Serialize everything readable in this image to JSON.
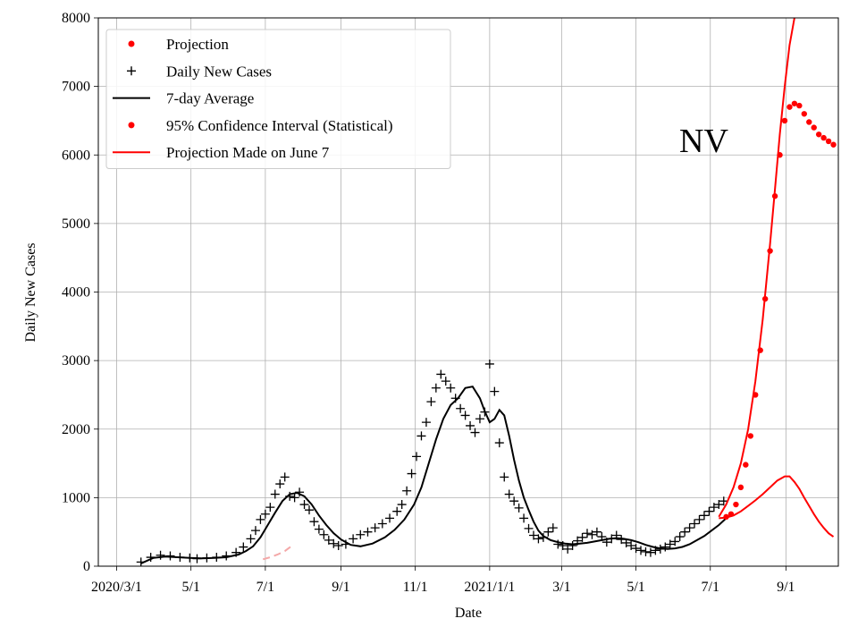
{
  "chart_data": {
    "type": "line",
    "title": "",
    "annotation": "NV",
    "xlabel": "Date",
    "ylabel": "Daily New Cases",
    "ylim": [
      0,
      8000
    ],
    "x_unit": "days since 2020-03-01",
    "xlim": [
      -15,
      592
    ],
    "grid": true,
    "legend_position": "upper-left",
    "x_ticks": [
      {
        "day": 0,
        "label": "2020/3/1"
      },
      {
        "day": 61,
        "label": "5/1"
      },
      {
        "day": 122,
        "label": "7/1"
      },
      {
        "day": 184,
        "label": "9/1"
      },
      {
        "day": 245,
        "label": "11/1"
      },
      {
        "day": 306,
        "label": "2021/1/1"
      },
      {
        "day": 365,
        "label": "3/1"
      },
      {
        "day": 426,
        "label": "5/1"
      },
      {
        "day": 487,
        "label": "7/1"
      },
      {
        "day": 549,
        "label": "9/1"
      }
    ],
    "y_ticks": [
      0,
      1000,
      2000,
      3000,
      4000,
      5000,
      6000,
      7000,
      8000
    ],
    "legend": [
      {
        "key": "projection",
        "label": "Projection",
        "marker": "dot",
        "color": "#ff0000"
      },
      {
        "key": "daily",
        "label": "Daily New Cases",
        "marker": "plus",
        "color": "#000000"
      },
      {
        "key": "avg",
        "label": "7-day Average",
        "marker": "line",
        "color": "#000000"
      },
      {
        "key": "ci",
        "label": "95% Confidence Interval (Statistical)",
        "marker": "dot",
        "color": "#ff0000"
      },
      {
        "key": "june7",
        "label": "Projection Made on June 7",
        "marker": "line",
        "color": "#ff0000"
      }
    ],
    "series": [
      {
        "name": "Daily New Cases",
        "kind": "scatter-plus",
        "color": "#000000",
        "x": [
          20,
          28,
          36,
          44,
          52,
          60,
          66,
          74,
          82,
          90,
          98,
          104,
          110,
          114,
          118,
          122,
          126,
          130,
          134,
          138,
          142,
          146,
          150,
          154,
          158,
          162,
          166,
          170,
          174,
          178,
          182,
          188,
          194,
          200,
          206,
          212,
          218,
          224,
          230,
          234,
          238,
          242,
          246,
          250,
          254,
          258,
          262,
          266,
          270,
          274,
          278,
          282,
          286,
          290,
          294,
          298,
          302,
          306,
          310,
          314,
          318,
          322,
          326,
          330,
          334,
          338,
          342,
          346,
          350,
          354,
          358,
          362,
          366,
          370,
          374,
          378,
          382,
          386,
          390,
          394,
          398,
          402,
          406,
          410,
          414,
          418,
          422,
          426,
          430,
          434,
          438,
          442,
          446,
          450,
          454,
          458,
          462,
          466,
          470,
          474,
          478,
          482,
          486,
          490,
          494,
          498
        ],
        "y": [
          60,
          130,
          160,
          150,
          130,
          120,
          110,
          120,
          130,
          150,
          200,
          280,
          400,
          520,
          680,
          760,
          860,
          1050,
          1200,
          1300,
          1020,
          1000,
          1080,
          900,
          820,
          650,
          540,
          460,
          380,
          330,
          300,
          320,
          400,
          460,
          500,
          560,
          620,
          700,
          800,
          900,
          1100,
          1350,
          1600,
          1900,
          2100,
          2400,
          2600,
          2800,
          2700,
          2600,
          2450,
          2300,
          2200,
          2050,
          1950,
          2150,
          2250,
          2950,
          2550,
          1800,
          1300,
          1050,
          950,
          850,
          700,
          550,
          450,
          400,
          420,
          500,
          560,
          320,
          300,
          250,
          300,
          370,
          420,
          480,
          460,
          500,
          430,
          350,
          400,
          450,
          390,
          340,
          300,
          260,
          230,
          210,
          200,
          230,
          250,
          280,
          320,
          360,
          430,
          500,
          560,
          620,
          680,
          740,
          800,
          860,
          900,
          950
        ]
      },
      {
        "name": "7-day Average",
        "kind": "line",
        "color": "#000000",
        "x": [
          20,
          30,
          40,
          50,
          60,
          70,
          80,
          90,
          100,
          106,
          112,
          118,
          124,
          130,
          136,
          142,
          148,
          154,
          160,
          166,
          172,
          178,
          184,
          192,
          200,
          210,
          220,
          228,
          236,
          244,
          250,
          256,
          262,
          268,
          274,
          280,
          286,
          292,
          298,
          302,
          306,
          310,
          314,
          318,
          322,
          326,
          330,
          334,
          338,
          342,
          346,
          350,
          356,
          362,
          368,
          374,
          380,
          386,
          392,
          398,
          404,
          410,
          416,
          422,
          428,
          434,
          440,
          446,
          452,
          458,
          464,
          470,
          476,
          482,
          488,
          494,
          500
        ],
        "y": [
          40,
          120,
          140,
          130,
          120,
          115,
          120,
          130,
          170,
          220,
          290,
          420,
          600,
          780,
          950,
          1050,
          1070,
          1020,
          900,
          740,
          600,
          480,
          390,
          310,
          290,
          330,
          420,
          530,
          680,
          900,
          1150,
          1500,
          1850,
          2150,
          2350,
          2450,
          2600,
          2620,
          2450,
          2260,
          2100,
          2150,
          2280,
          2200,
          1900,
          1550,
          1250,
          1000,
          820,
          650,
          520,
          440,
          380,
          350,
          330,
          320,
          330,
          340,
          360,
          380,
          400,
          410,
          400,
          380,
          350,
          310,
          280,
          260,
          250,
          260,
          280,
          320,
          380,
          440,
          520,
          600,
          700
        ]
      },
      {
        "name": "Projection",
        "kind": "scatter-dot",
        "color": "#ff0000",
        "x": [
          500,
          504,
          508,
          512,
          516,
          520,
          524,
          528,
          532,
          536,
          540,
          544,
          548,
          552,
          556,
          560,
          564,
          568,
          572,
          576,
          580,
          584,
          588
        ],
        "y": [
          720,
          760,
          900,
          1150,
          1480,
          1900,
          2500,
          3150,
          3900,
          4600,
          5400,
          6000,
          6500,
          6700,
          6750,
          6720,
          6600,
          6480,
          6400,
          6300,
          6250,
          6200,
          6150
        ]
      },
      {
        "name": "Projection Made on June 7 (upper)",
        "kind": "line",
        "color": "#ff0000",
        "x": [
          494,
          500,
          506,
          512,
          518,
          524,
          530,
          536,
          540,
          544,
          548,
          552,
          556
        ],
        "y": [
          720,
          900,
          1150,
          1500,
          2000,
          2700,
          3600,
          4700,
          5500,
          6300,
          7000,
          7600,
          8000
        ]
      },
      {
        "name": "Projection Made on June 7 (lower)",
        "kind": "line",
        "color": "#ff0000",
        "x": [
          494,
          500,
          506,
          512,
          518,
          524,
          530,
          536,
          542,
          548,
          552,
          556,
          560,
          564,
          568,
          572,
          576,
          580,
          584,
          588
        ],
        "y": [
          700,
          710,
          740,
          800,
          880,
          960,
          1050,
          1150,
          1250,
          1310,
          1310,
          1230,
          1130,
          1000,
          880,
          760,
          650,
          560,
          480,
          430
        ]
      },
      {
        "name": "Early projection",
        "kind": "line",
        "color": "#f4a8a8",
        "x": [
          120,
          126,
          132,
          138,
          144
        ],
        "y": [
          100,
          130,
          170,
          220,
          300
        ]
      }
    ]
  }
}
